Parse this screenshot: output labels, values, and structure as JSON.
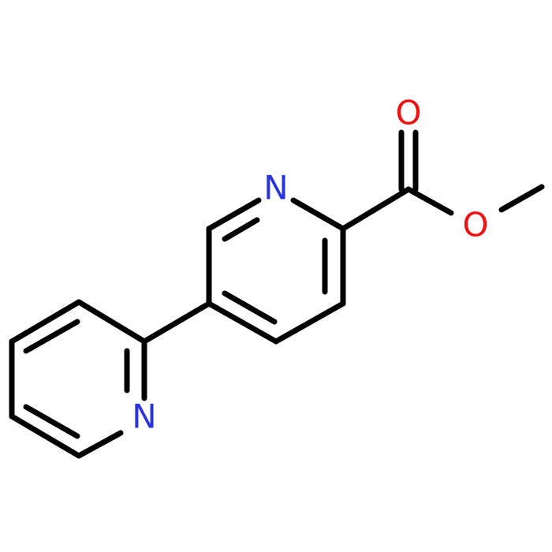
{
  "atoms": [
    {
      "label": "N"
    },
    {
      "label": "N"
    },
    {
      "label": "O"
    },
    {
      "label": "O"
    }
  ]
}
